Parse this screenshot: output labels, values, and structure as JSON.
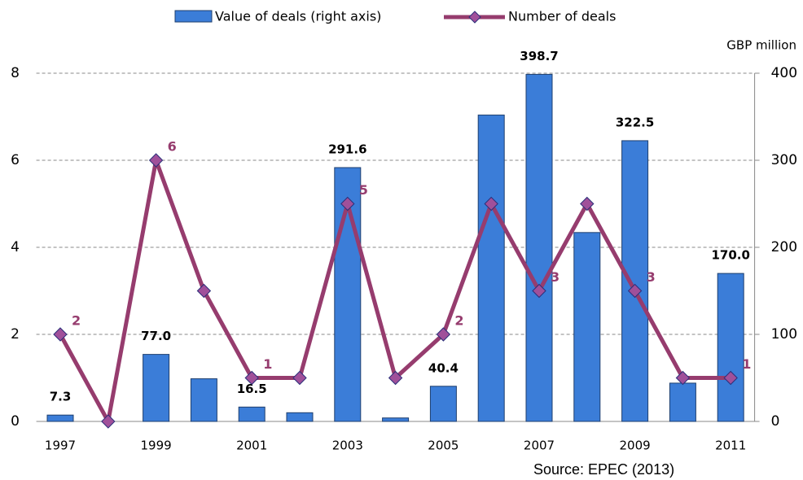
{
  "chart_data": {
    "type": "combo",
    "categories": [
      "1997",
      null,
      "1999",
      null,
      "2001",
      null,
      "2003",
      null,
      "2005",
      null,
      "2007",
      null,
      "2009",
      null,
      "2011"
    ],
    "series": [
      {
        "name": "Value of deals (right axis)",
        "type": "bar",
        "axis": "y2",
        "color": "#3b7dd8",
        "values": [
          7.3,
          0,
          77.0,
          49,
          16.5,
          10,
          291.6,
          4,
          40.4,
          352,
          398.7,
          217,
          322.5,
          44,
          170.0
        ],
        "value_labels": [
          "7.3",
          null,
          "77.0",
          null,
          "16.5",
          null,
          "291.6",
          null,
          "40.4",
          null,
          "398.7",
          null,
          "322.5",
          null,
          "170.0"
        ]
      },
      {
        "name": "Number of deals",
        "type": "line",
        "axis": "y",
        "color": "#963c6e",
        "marker_color": "#a0509a",
        "values": [
          2,
          0,
          6,
          3,
          1,
          1,
          5,
          1,
          2,
          5,
          3,
          5,
          3,
          1,
          1
        ],
        "value_labels": [
          "2",
          null,
          "6",
          null,
          "1",
          null,
          "5",
          null,
          "2",
          null,
          "3",
          null,
          "3",
          null,
          "1"
        ]
      }
    ],
    "ylim": [
      0,
      8
    ],
    "yticks": [
      0,
      2,
      4,
      6,
      8
    ],
    "y2lim": [
      0,
      400
    ],
    "y2ticks": [
      0,
      100,
      200,
      300,
      400
    ],
    "y2_label": "GBP million",
    "grid": true,
    "source": "Source: EPEC (2013)"
  }
}
